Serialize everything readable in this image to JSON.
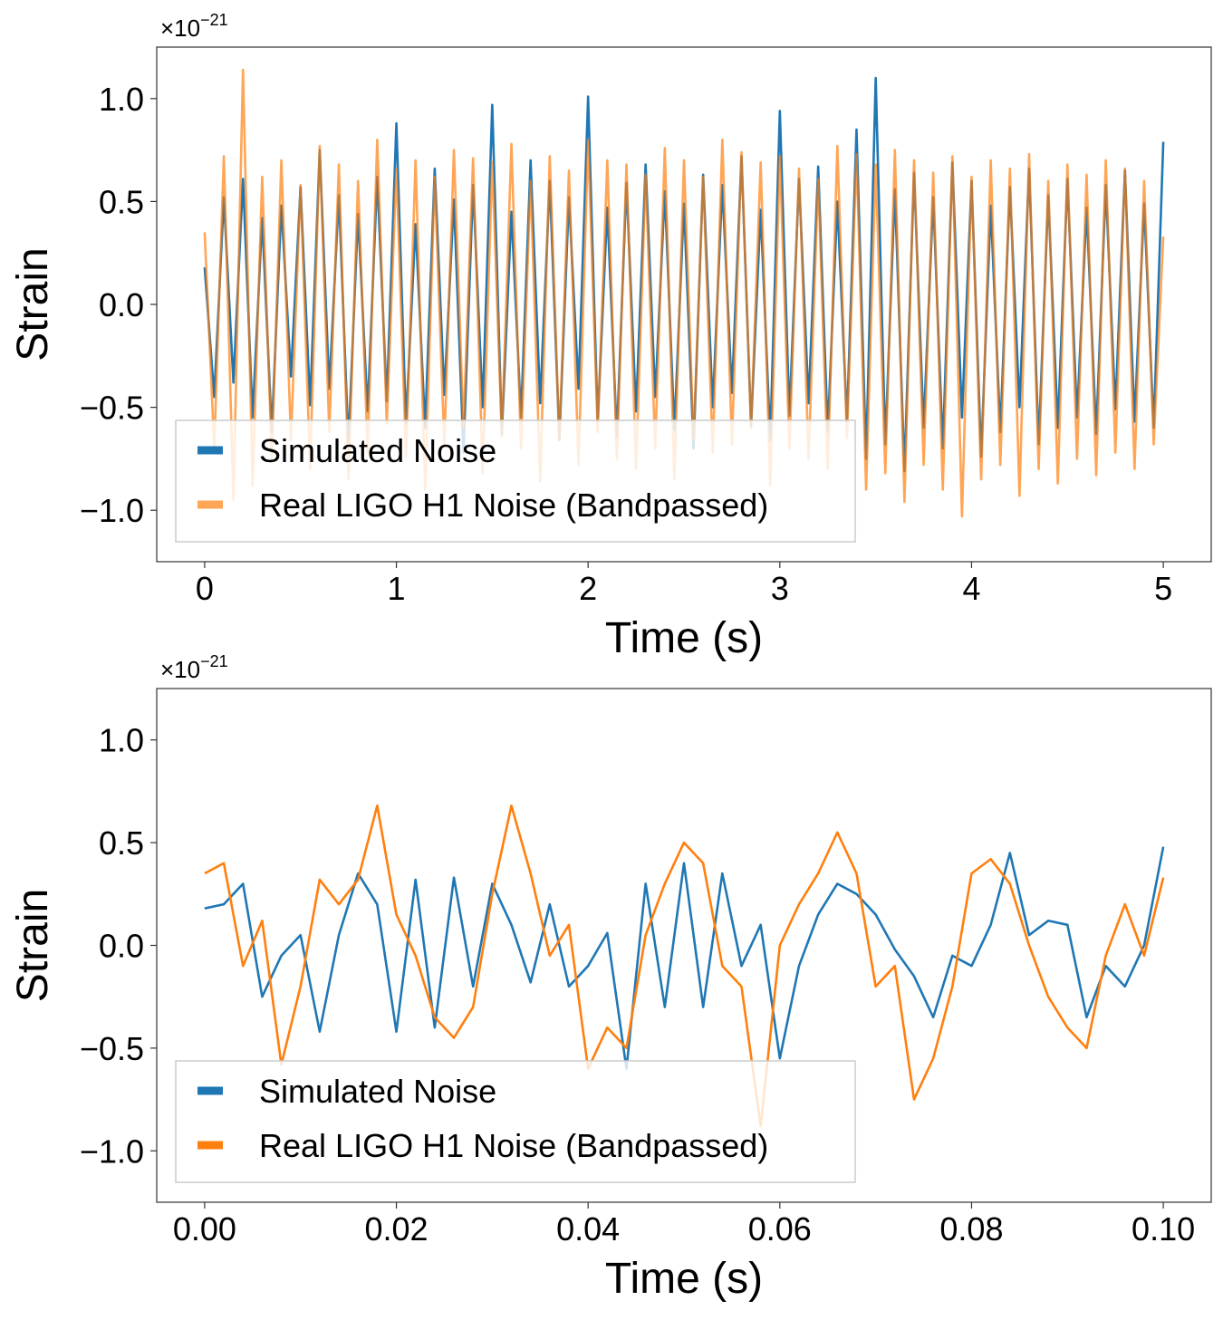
{
  "chart_data": [
    {
      "type": "line",
      "xlabel": "Time (s)",
      "ylabel": "Strain",
      "offset_text": {
        "base": "×10",
        "exponent": "−21"
      },
      "xlim": [
        -0.25,
        5.25
      ],
      "xticks": [
        0,
        1,
        2,
        3,
        4,
        5
      ],
      "ylim": [
        -1.25,
        1.25
      ],
      "yticks": [
        {
          "value": -1.0,
          "label": "−1.0"
        },
        {
          "value": -0.5,
          "label": "−0.5"
        },
        {
          "value": 0.0,
          "label": "0.0"
        },
        {
          "value": 0.5,
          "label": "0.5"
        },
        {
          "value": 1.0,
          "label": "1.0"
        }
      ],
      "legend": "lower left",
      "x": [
        0,
        0.05,
        0.1,
        0.15,
        0.2,
        0.25,
        0.3,
        0.35,
        0.4,
        0.45,
        0.5,
        0.55,
        0.6,
        0.65,
        0.7,
        0.75,
        0.8,
        0.85,
        0.9,
        0.95,
        1,
        1.05,
        1.1,
        1.15,
        1.2,
        1.25,
        1.3,
        1.35,
        1.4,
        1.45,
        1.5,
        1.55,
        1.6,
        1.65,
        1.7,
        1.75,
        1.8,
        1.85,
        1.9,
        1.95,
        2,
        2.05,
        2.1,
        2.15,
        2.2,
        2.25,
        2.3,
        2.35,
        2.4,
        2.45,
        2.5,
        2.55,
        2.6,
        2.65,
        2.7,
        2.75,
        2.8,
        2.85,
        2.9,
        2.95,
        3,
        3.05,
        3.1,
        3.15,
        3.2,
        3.25,
        3.3,
        3.35,
        3.4,
        3.45,
        3.5,
        3.55,
        3.6,
        3.65,
        3.7,
        3.75,
        3.8,
        3.85,
        3.9,
        3.95,
        4,
        4.05,
        4.1,
        4.15,
        4.2,
        4.25,
        4.3,
        4.35,
        4.4,
        4.45,
        4.5,
        4.55,
        4.6,
        4.65,
        4.7,
        4.75,
        4.8,
        4.85,
        4.9,
        4.95,
        5
      ],
      "series": [
        {
          "name": "Simulated Noise",
          "color": "#1f77b4",
          "alpha": 1,
          "values": [
            0.18,
            -0.45,
            0.52,
            -0.38,
            0.61,
            -0.55,
            0.42,
            -0.62,
            0.48,
            -0.35,
            0.57,
            -0.49,
            0.75,
            -0.41,
            0.53,
            -0.68,
            0.44,
            -0.52,
            0.62,
            -0.47,
            0.88,
            -0.58,
            0.39,
            -0.6,
            0.66,
            -0.44,
            0.51,
            -0.72,
            0.58,
            -0.5,
            0.97,
            -0.63,
            0.45,
            -0.55,
            0.7,
            -0.48,
            0.6,
            -0.66,
            0.52,
            -0.41,
            1.01,
            -0.57,
            0.47,
            -0.64,
            0.59,
            -0.52,
            0.68,
            -0.45,
            0.55,
            -0.61,
            0.49,
            -0.7,
            0.63,
            -0.5,
            0.58,
            -0.43,
            0.72,
            -0.59,
            0.46,
            -0.66,
            0.94,
            -0.54,
            0.61,
            -0.48,
            0.67,
            -0.62,
            0.5,
            -0.57,
            0.85,
            -0.75,
            1.1,
            -0.68,
            0.56,
            -0.81,
            0.64,
            -0.6,
            0.52,
            -0.7,
            0.69,
            -0.55,
            0.6,
            -0.74,
            0.48,
            -0.62,
            0.57,
            -0.5,
            0.66,
            -0.68,
            0.53,
            -0.6,
            0.61,
            -0.55,
            0.47,
            -0.63,
            0.58,
            -0.51,
            0.65,
            -0.57,
            0.49,
            -0.6,
            0.79
          ]
        },
        {
          "name": "Real LIGO H1 Noise (Bandpassed)",
          "color": "#ff7f0e",
          "alpha": 0.7,
          "values": [
            0.35,
            -0.7,
            0.72,
            -0.95,
            1.14,
            -0.88,
            0.62,
            -0.75,
            0.7,
            -0.66,
            0.58,
            -0.8,
            0.77,
            -0.62,
            0.68,
            -0.85,
            0.6,
            -0.72,
            0.8,
            -0.58,
            0.66,
            -0.74,
            0.7,
            -0.9,
            0.62,
            -0.68,
            0.75,
            -0.6,
            0.71,
            -0.82,
            0.69,
            -0.64,
            0.78,
            -0.7,
            0.6,
            -0.86,
            0.72,
            -0.66,
            0.65,
            -0.78,
            0.8,
            -0.62,
            0.7,
            -0.75,
            0.68,
            -0.8,
            0.63,
            -0.7,
            0.76,
            -0.85,
            0.7,
            -0.66,
            0.62,
            -0.72,
            0.8,
            -0.68,
            0.74,
            -0.6,
            0.69,
            -0.88,
            0.72,
            -0.7,
            0.66,
            -0.75,
            0.61,
            -0.8,
            0.77,
            -0.65,
            0.73,
            -0.9,
            0.68,
            -0.82,
            0.75,
            -0.96,
            0.7,
            -0.78,
            0.64,
            -0.9,
            0.72,
            -1.03,
            0.62,
            -0.85,
            0.7,
            -0.78,
            0.66,
            -0.93,
            0.73,
            -0.8,
            0.6,
            -0.87,
            0.68,
            -0.75,
            0.63,
            -0.83,
            0.7,
            -0.72,
            0.66,
            -0.8,
            0.6,
            -0.68,
            0.33
          ]
        }
      ]
    },
    {
      "type": "line",
      "xlabel": "Time (s)",
      "ylabel": "Strain",
      "offset_text": {
        "base": "×10",
        "exponent": "−21"
      },
      "xlim": [
        -0.005,
        0.105
      ],
      "xticks": [
        {
          "value": 0,
          "label": "0.00"
        },
        {
          "value": 0.02,
          "label": "0.02"
        },
        {
          "value": 0.04,
          "label": "0.04"
        },
        {
          "value": 0.06,
          "label": "0.06"
        },
        {
          "value": 0.08,
          "label": "0.08"
        },
        {
          "value": 0.1,
          "label": "0.10"
        }
      ],
      "ylim": [
        -1.25,
        1.25
      ],
      "yticks": [
        {
          "value": -1.0,
          "label": "−1.0"
        },
        {
          "value": -0.5,
          "label": "−0.5"
        },
        {
          "value": 0.0,
          "label": "0.0"
        },
        {
          "value": 0.5,
          "label": "0.5"
        },
        {
          "value": 1.0,
          "label": "1.0"
        }
      ],
      "legend": "lower left",
      "x": [
        0,
        0.002,
        0.004,
        0.006,
        0.008,
        0.01,
        0.012,
        0.014,
        0.016,
        0.018,
        0.02,
        0.022,
        0.024,
        0.026,
        0.028,
        0.03,
        0.032,
        0.034,
        0.036,
        0.038,
        0.04,
        0.042,
        0.044,
        0.046,
        0.048,
        0.05,
        0.052,
        0.054,
        0.056,
        0.058,
        0.06,
        0.062,
        0.064,
        0.066,
        0.068,
        0.07,
        0.072,
        0.074,
        0.076,
        0.078,
        0.08,
        0.082,
        0.084,
        0.086,
        0.088,
        0.09,
        0.092,
        0.094,
        0.096,
        0.098,
        0.1
      ],
      "series": [
        {
          "name": "Simulated Noise",
          "color": "#1f77b4",
          "alpha": 1,
          "values": [
            0.18,
            0.2,
            0.3,
            -0.25,
            -0.05,
            0.05,
            -0.42,
            0.05,
            0.35,
            0.2,
            -0.42,
            0.32,
            -0.4,
            0.33,
            -0.2,
            0.3,
            0.1,
            -0.18,
            0.2,
            -0.2,
            -0.1,
            0.06,
            -0.6,
            0.3,
            -0.3,
            0.4,
            -0.3,
            0.35,
            -0.1,
            0.1,
            -0.55,
            -0.1,
            0.15,
            0.3,
            0.25,
            0.15,
            -0.02,
            -0.15,
            -0.35,
            -0.05,
            -0.1,
            0.1,
            0.45,
            0.05,
            0.12,
            0.1,
            -0.35,
            -0.1,
            -0.2,
            0.0,
            0.48
          ]
        },
        {
          "name": "Real LIGO H1 Noise (Bandpassed)",
          "color": "#ff7f0e",
          "alpha": 1,
          "values": [
            0.35,
            0.4,
            -0.1,
            0.12,
            -0.58,
            -0.2,
            0.32,
            0.2,
            0.32,
            0.68,
            0.15,
            -0.05,
            -0.35,
            -0.45,
            -0.3,
            0.25,
            0.68,
            0.35,
            -0.05,
            0.1,
            -0.6,
            -0.4,
            -0.5,
            0.05,
            0.3,
            0.5,
            0.4,
            -0.1,
            -0.2,
            -0.88,
            0.0,
            0.2,
            0.35,
            0.55,
            0.35,
            -0.2,
            -0.1,
            -0.75,
            -0.55,
            -0.2,
            0.35,
            0.42,
            0.3,
            0.0,
            -0.25,
            -0.4,
            -0.5,
            -0.05,
            0.2,
            -0.05,
            0.33
          ]
        }
      ]
    }
  ]
}
